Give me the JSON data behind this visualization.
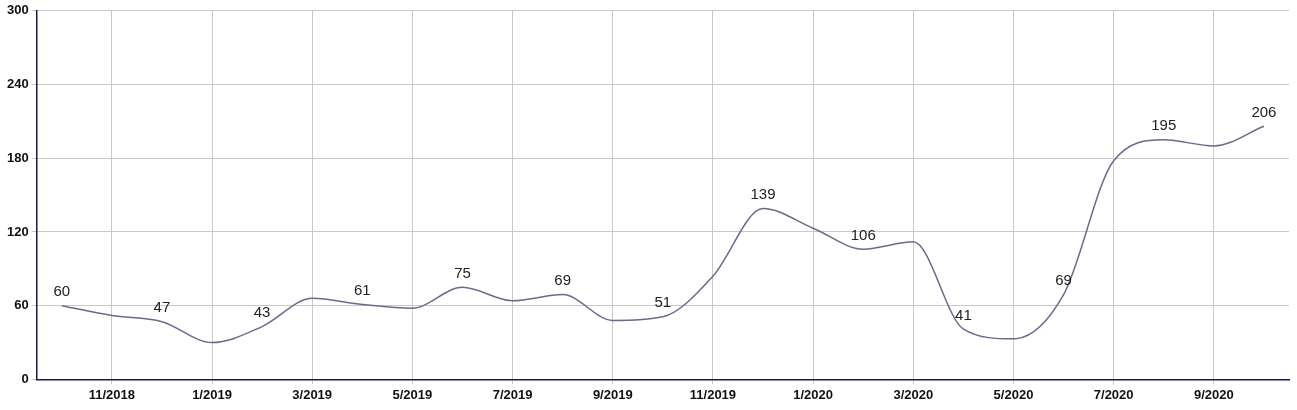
{
  "chart_data": {
    "type": "line",
    "categories": [
      null,
      "11/2018",
      null,
      "1/2019",
      null,
      "3/2019",
      null,
      "5/2019",
      null,
      "7/2019",
      null,
      "9/2019",
      null,
      "11/2019",
      null,
      "1/2020",
      null,
      "3/2020",
      null,
      "5/2020",
      null,
      "7/2020",
      null,
      "9/2020",
      null
    ],
    "series": [
      {
        "color": "#6b6a8c",
        "values": [
          60,
          52,
          47,
          30,
          43,
          66,
          61,
          58,
          75,
          64,
          69,
          48,
          51,
          84,
          139,
          123,
          106,
          112,
          41,
          33,
          69,
          178,
          195,
          190,
          206
        ],
        "value_labels": [
          "60",
          null,
          "47",
          null,
          "43",
          null,
          "61",
          null,
          "75",
          null,
          "69",
          null,
          "51",
          null,
          "139",
          null,
          "106",
          null,
          "41",
          null,
          "69",
          null,
          "195",
          null,
          "206"
        ]
      }
    ],
    "ylim": [
      0,
      300
    ],
    "yticks": [
      0,
      60,
      120,
      180,
      240,
      300
    ],
    "grid": true,
    "legend": false,
    "marker": "none",
    "line_style": "solid"
  }
}
